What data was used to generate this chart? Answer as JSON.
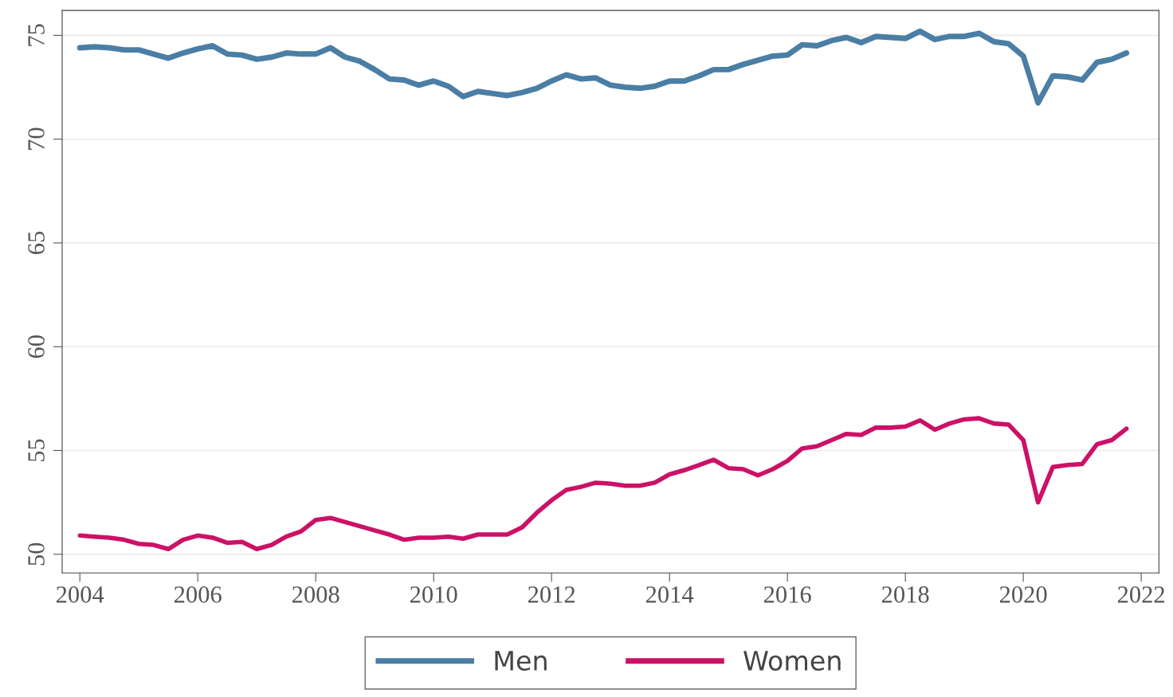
{
  "chart_data": {
    "type": "line",
    "x": [
      2004.0,
      2004.25,
      2004.5,
      2004.75,
      2005.0,
      2005.25,
      2005.5,
      2005.75,
      2006.0,
      2006.25,
      2006.5,
      2006.75,
      2007.0,
      2007.25,
      2007.5,
      2007.75,
      2008.0,
      2008.25,
      2008.5,
      2008.75,
      2009.0,
      2009.25,
      2009.5,
      2009.75,
      2010.0,
      2010.25,
      2010.5,
      2010.75,
      2011.0,
      2011.25,
      2011.5,
      2011.75,
      2012.0,
      2012.25,
      2012.5,
      2012.75,
      2013.0,
      2013.25,
      2013.5,
      2013.75,
      2014.0,
      2014.25,
      2014.5,
      2014.75,
      2015.0,
      2015.25,
      2015.5,
      2015.75,
      2016.0,
      2016.25,
      2016.5,
      2016.75,
      2017.0,
      2017.25,
      2017.5,
      2017.75,
      2018.0,
      2018.25,
      2018.5,
      2018.75,
      2019.0,
      2019.25,
      2019.5,
      2019.75,
      2020.0,
      2020.25,
      2020.5,
      2020.75,
      2021.0,
      2021.25,
      2021.5,
      2021.75
    ],
    "series": [
      {
        "name": "Men",
        "color": "#4a7ea5",
        "values": [
          74.4,
          74.45,
          74.4,
          74.3,
          74.3,
          74.1,
          73.9,
          74.15,
          74.35,
          74.5,
          74.1,
          74.05,
          73.85,
          73.95,
          74.15,
          74.1,
          74.1,
          74.4,
          73.95,
          73.75,
          73.35,
          72.9,
          72.85,
          72.6,
          72.8,
          72.55,
          72.05,
          72.3,
          72.2,
          72.1,
          72.25,
          72.45,
          72.8,
          73.1,
          72.9,
          72.95,
          72.6,
          72.5,
          72.45,
          72.55,
          72.8,
          72.8,
          73.05,
          73.35,
          73.35,
          73.6,
          73.8,
          74.0,
          74.05,
          74.55,
          74.5,
          74.75,
          74.9,
          74.65,
          74.95,
          74.9,
          74.85,
          75.2,
          74.8,
          74.95,
          74.95,
          75.1,
          74.7,
          74.6,
          74.0,
          71.75,
          73.05,
          73.0,
          72.85,
          73.7,
          73.85,
          74.15
        ]
      },
      {
        "name": "Women",
        "color": "#cc1166",
        "values": [
          50.9,
          50.85,
          50.8,
          50.7,
          50.5,
          50.45,
          50.25,
          50.7,
          50.9,
          50.8,
          50.55,
          50.6,
          50.25,
          50.45,
          50.85,
          51.1,
          51.65,
          51.75,
          51.55,
          51.35,
          51.15,
          50.95,
          50.7,
          50.8,
          50.8,
          50.85,
          50.75,
          50.95,
          50.95,
          50.95,
          51.3,
          52.0,
          52.6,
          53.1,
          53.25,
          53.45,
          53.4,
          53.3,
          53.3,
          53.45,
          53.85,
          54.05,
          54.3,
          54.55,
          54.15,
          54.1,
          53.8,
          54.1,
          54.5,
          55.1,
          55.2,
          55.5,
          55.8,
          55.75,
          56.1,
          56.1,
          56.15,
          56.45,
          56.0,
          56.3,
          56.5,
          56.55,
          56.3,
          56.25,
          55.5,
          52.5,
          54.2,
          54.3,
          54.35,
          55.3,
          55.5,
          56.05
        ]
      }
    ],
    "xlim": [
      2003.7,
      2022.3
    ],
    "xticks": [
      2004,
      2006,
      2008,
      2010,
      2012,
      2014,
      2016,
      2018,
      2020,
      2022
    ],
    "ylim": [
      49.1,
      76.2
    ],
    "yticks": [
      50,
      55,
      60,
      65,
      70,
      75
    ],
    "grid": "y",
    "legend": "bottom",
    "marker": "none",
    "line_style": "solid"
  }
}
